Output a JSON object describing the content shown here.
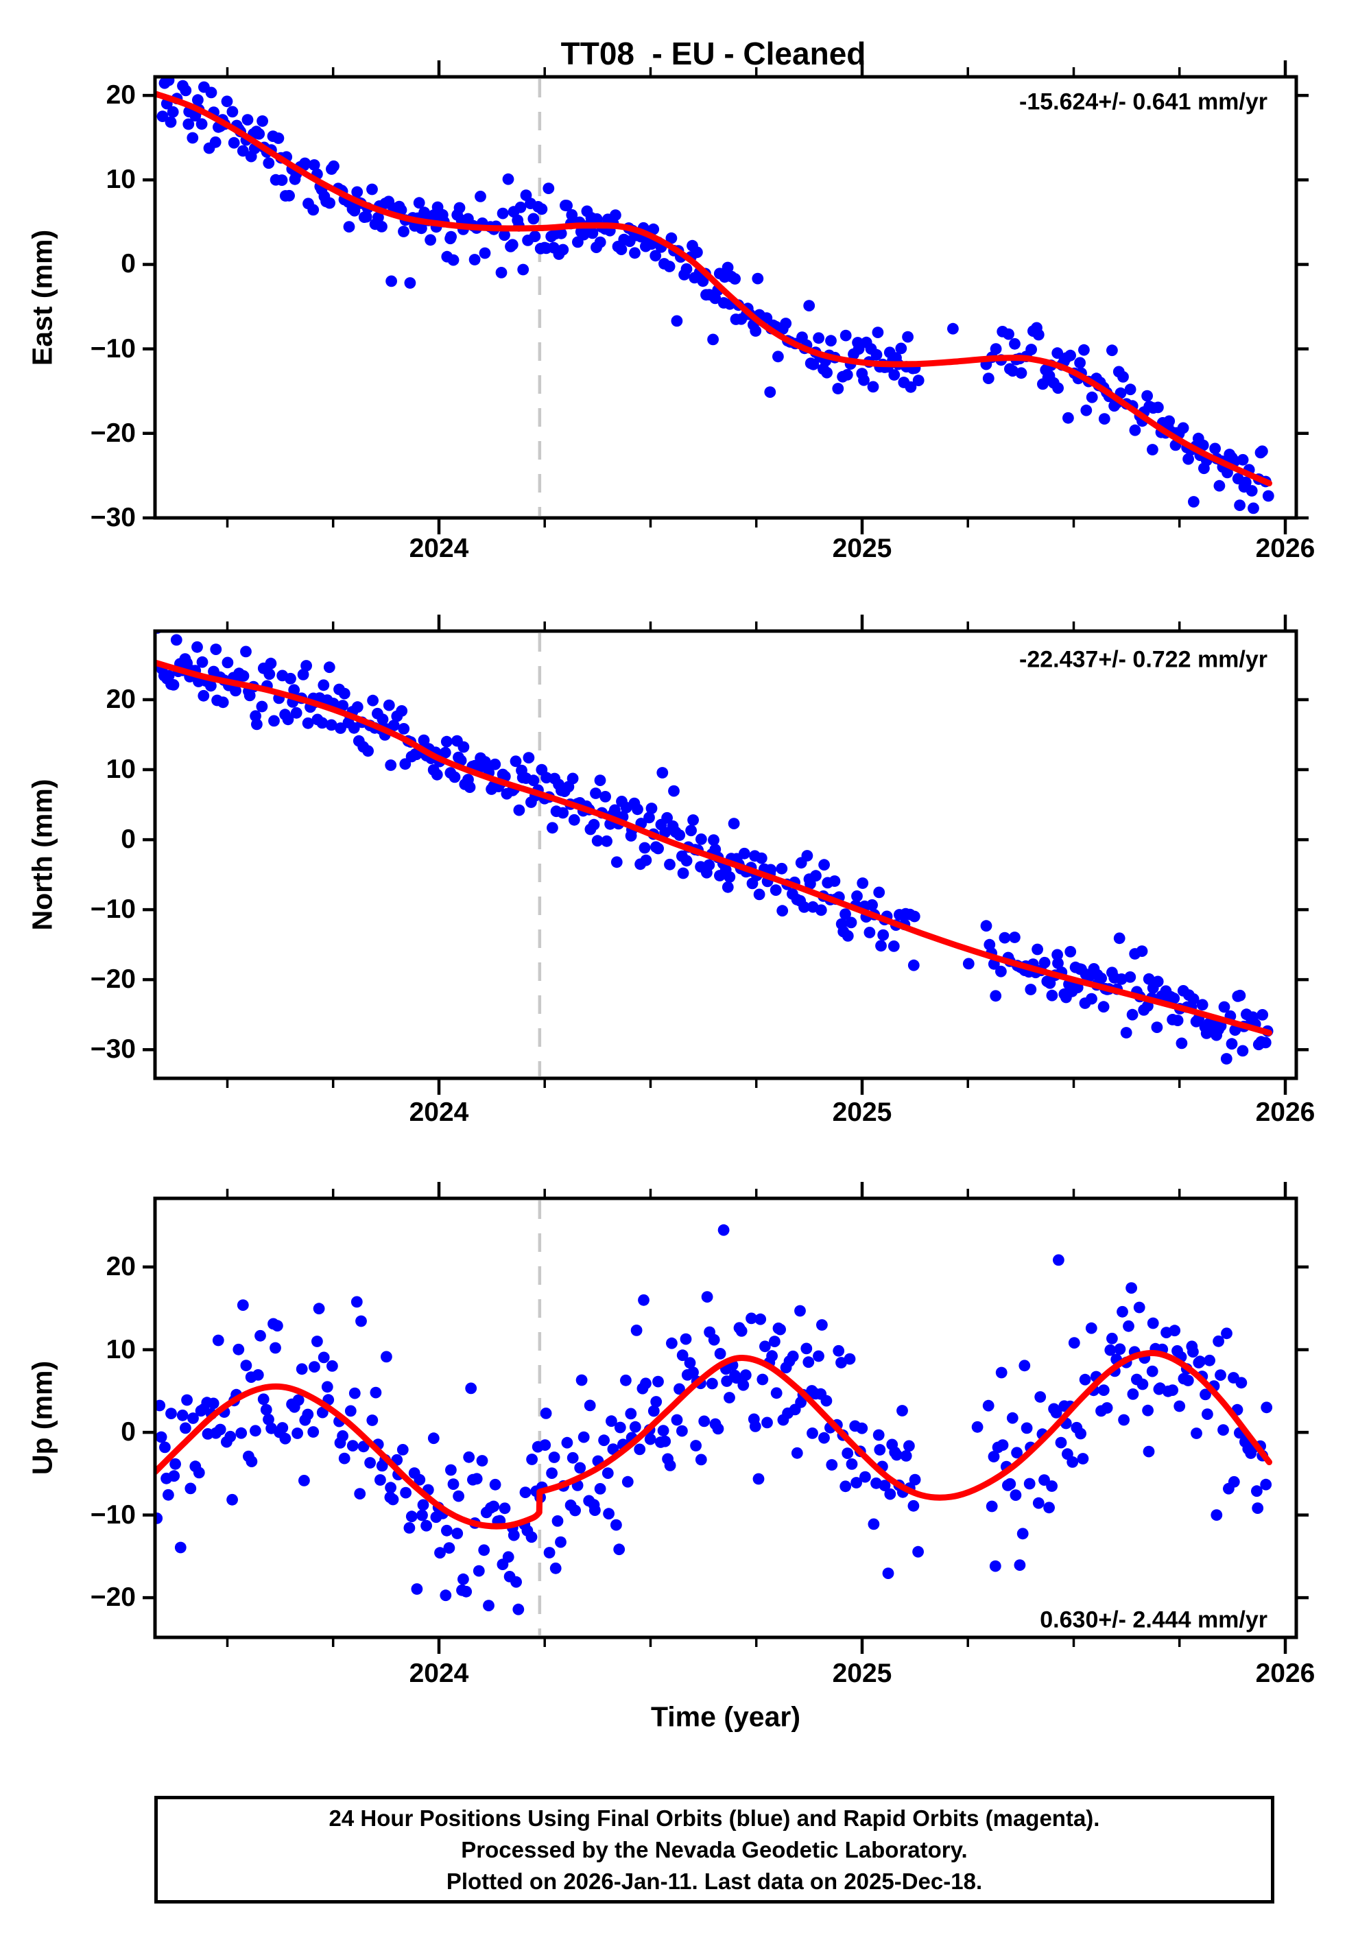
{
  "title": "TT08  - EU - Cleaned",
  "footer": {
    "line1": "24 Hour Positions Using Final Orbits (blue) and Rapid Orbits (magenta).",
    "line2": "Processed by the Nevada Geodetic Laboratory.",
    "line3": "Plotted on 2026-Jan-11. Last data on 2025-Dec-18."
  },
  "chart_data": {
    "type": "scatter",
    "station": "TT08",
    "reference_frame": "EU",
    "status": "Cleaned",
    "xlabel": "Time (year)",
    "x_axis": {
      "range": [
        2023.329,
        2026.026
      ],
      "major_ticks": [
        2024,
        2025,
        2026
      ],
      "minor_tick_step": 0.25,
      "data_start": 2023.335,
      "data_end": 2025.962
    },
    "event_line_x": 2024.238,
    "colors": {
      "points": "#0000ff",
      "trend": "#ff0000",
      "event_line": "#c8c8c8",
      "frame": "#000000",
      "background": "#ffffff"
    },
    "panels": [
      {
        "id": "east",
        "ylabel": "East (mm)",
        "annotation": "-15.624+/- 0.641 mm/yr",
        "rate_mm_yr": -15.624,
        "rate_sigma_mm_yr": 0.641,
        "y_range": [
          -30.0,
          22.2
        ],
        "yticks": [
          20,
          10,
          0,
          -10,
          -20,
          -30
        ],
        "trend_segments": [
          [
            [
              2023.329,
              20.2
            ],
            [
              2023.42,
              18.6
            ],
            [
              2023.52,
              15.9
            ],
            [
              2023.62,
              12.7
            ],
            [
              2023.72,
              9.7
            ],
            [
              2023.82,
              7.2
            ],
            [
              2023.92,
              5.5
            ],
            [
              2024.02,
              4.7
            ],
            [
              2024.12,
              4.3
            ],
            [
              2024.24,
              4.3
            ],
            [
              2024.34,
              4.6
            ],
            [
              2024.44,
              4.4
            ],
            [
              2024.52,
              2.9
            ],
            [
              2024.6,
              0.3
            ],
            [
              2024.68,
              -3.4
            ],
            [
              2024.76,
              -6.9
            ],
            [
              2024.84,
              -9.4
            ],
            [
              2024.92,
              -10.9
            ],
            [
              2025.02,
              -11.7
            ],
            [
              2025.12,
              -11.8
            ],
            [
              2025.22,
              -11.5
            ],
            [
              2025.32,
              -11.1
            ],
            [
              2025.4,
              -11.2
            ],
            [
              2025.48,
              -12.3
            ],
            [
              2025.56,
              -14.5
            ],
            [
              2025.64,
              -17.2
            ],
            [
              2025.72,
              -19.9
            ],
            [
              2025.8,
              -22.2
            ],
            [
              2025.88,
              -24.1
            ],
            [
              2025.962,
              -25.9
            ]
          ]
        ],
        "scatter_model": {
          "sigma": 1.8,
          "outlier_sigma": 3.8,
          "outlier_frac": 0.05,
          "seed": 7
        },
        "gaps": [
          [
            2025.135,
            2025.295
          ]
        ]
      },
      {
        "id": "north",
        "ylabel": "North (mm)",
        "annotation": "-22.437+/- 0.722 mm/yr",
        "rate_mm_yr": -22.437,
        "rate_sigma_mm_yr": 0.722,
        "y_range": [
          -34.1,
          29.8
        ],
        "yticks": [
          20,
          10,
          0,
          -10,
          -20,
          -30
        ],
        "trend_segments": [
          [
            [
              2023.329,
              25.3
            ],
            [
              2023.45,
              23.2
            ],
            [
              2023.6,
              21.3
            ],
            [
              2023.75,
              18.6
            ],
            [
              2023.9,
              14.9
            ],
            [
              2024.0,
              11.6
            ],
            [
              2024.12,
              8.8
            ],
            [
              2024.25,
              6.3
            ],
            [
              2024.4,
              3.2
            ],
            [
              2024.55,
              -0.4
            ],
            [
              2024.7,
              -3.6
            ],
            [
              2024.85,
              -6.8
            ],
            [
              2025.0,
              -10.2
            ],
            [
              2025.15,
              -13.6
            ],
            [
              2025.3,
              -16.6
            ],
            [
              2025.45,
              -19.2
            ],
            [
              2025.6,
              -21.6
            ],
            [
              2025.75,
              -24.0
            ],
            [
              2025.88,
              -26.2
            ],
            [
              2025.962,
              -27.6
            ]
          ]
        ],
        "scatter_model": {
          "sigma": 2.1,
          "outlier_sigma": 4.2,
          "outlier_frac": 0.05,
          "seed": 13
        },
        "gaps": [
          [
            2025.135,
            2025.295
          ]
        ]
      },
      {
        "id": "up",
        "ylabel": "Up (mm)",
        "annotation": "0.630+/- 2.444 mm/yr",
        "rate_mm_yr": 0.63,
        "rate_sigma_mm_yr": 2.444,
        "y_range": [
          -24.8,
          28.3
        ],
        "yticks": [
          20,
          10,
          0,
          -10,
          -20
        ],
        "trend_segments": [
          [
            [
              2023.329,
              -4.8
            ],
            [
              2023.4,
              -1.2
            ],
            [
              2023.48,
              2.6
            ],
            [
              2023.56,
              5.0
            ],
            [
              2023.63,
              5.5
            ],
            [
              2023.7,
              4.2
            ],
            [
              2023.78,
              1.4
            ],
            [
              2023.86,
              -2.4
            ],
            [
              2023.94,
              -6.4
            ],
            [
              2024.02,
              -9.6
            ],
            [
              2024.09,
              -11.1
            ],
            [
              2024.16,
              -11.3
            ],
            [
              2024.22,
              -10.4
            ],
            [
              2024.237,
              -9.7
            ]
          ],
          [
            [
              2024.238,
              -7.2
            ],
            [
              2024.3,
              -6.2
            ],
            [
              2024.38,
              -4.2
            ],
            [
              2024.46,
              -1.2
            ],
            [
              2024.54,
              2.6
            ],
            [
              2024.61,
              6.0
            ],
            [
              2024.67,
              8.3
            ],
            [
              2024.72,
              9.0
            ],
            [
              2024.78,
              8.0
            ],
            [
              2024.85,
              5.2
            ],
            [
              2024.92,
              1.6
            ],
            [
              2025.0,
              -2.6
            ],
            [
              2025.07,
              -5.8
            ],
            [
              2025.14,
              -7.6
            ],
            [
              2025.21,
              -7.8
            ],
            [
              2025.28,
              -6.6
            ],
            [
              2025.36,
              -4.0
            ],
            [
              2025.44,
              -0.2
            ],
            [
              2025.52,
              4.2
            ],
            [
              2025.59,
              7.6
            ],
            [
              2025.65,
              9.3
            ],
            [
              2025.71,
              9.4
            ],
            [
              2025.78,
              7.4
            ],
            [
              2025.85,
              3.8
            ],
            [
              2025.92,
              -0.8
            ],
            [
              2025.962,
              -3.6
            ]
          ]
        ],
        "scatter_model": {
          "sigma": 4.6,
          "outlier_sigma": 8.2,
          "outlier_frac": 0.22,
          "seed": 29
        },
        "gaps": [
          [
            2025.135,
            2025.295
          ]
        ]
      }
    ]
  }
}
